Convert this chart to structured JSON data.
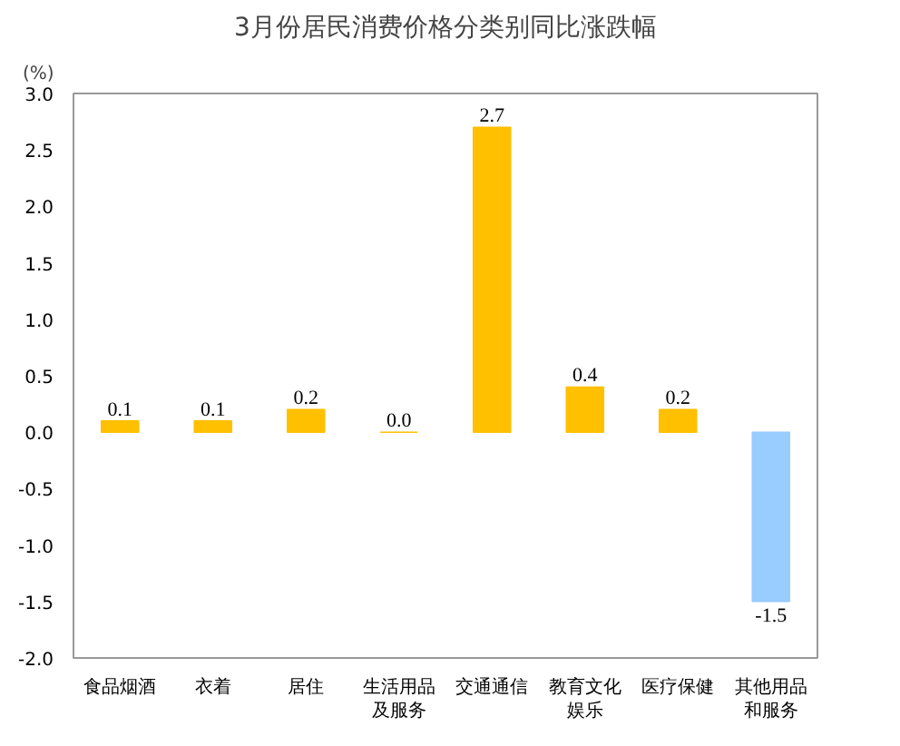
{
  "chart_data": {
    "type": "bar",
    "title": "3月份居民消费价格分类别同比涨跌幅",
    "ylabel": "(%)",
    "categories": [
      "食品烟酒",
      "衣着",
      "居住",
      "生活用品及服务",
      "交通通信",
      "教育文化娱乐",
      "医疗保健",
      "其他用品和服务"
    ],
    "values": [
      0.1,
      0.1,
      0.2,
      0.0,
      2.7,
      0.4,
      0.2,
      -1.5
    ],
    "colors": [
      "#ffc000",
      "#ffc000",
      "#ffc000",
      "#ffc000",
      "#ffc000",
      "#ffc000",
      "#ffc000",
      "#99ccff"
    ],
    "ylim": [
      -2.0,
      3.0
    ],
    "yticks": [
      {
        "value": -2.0,
        "label": "-2.0"
      },
      {
        "value": -1.5,
        "label": "-1.5"
      },
      {
        "value": -1.0,
        "label": "-1.0"
      },
      {
        "value": -0.5,
        "label": "-0.5"
      },
      {
        "value": 0,
        "label": "0.0"
      },
      {
        "value": 0.5,
        "label": "0.5"
      },
      {
        "value": 1.0,
        "label": "1.0"
      },
      {
        "value": 1.5,
        "label": "1.5"
      },
      {
        "value": 2.0,
        "label": "2.0"
      },
      {
        "value": 2.5,
        "label": "2.5"
      },
      {
        "value": 3.0,
        "label": "3.0"
      }
    ],
    "value_labels": [
      "0.1",
      "0.1",
      "0.2",
      "0.0",
      "2.7",
      "0.4",
      "0.2",
      "-1.5"
    ],
    "grid": false
  }
}
